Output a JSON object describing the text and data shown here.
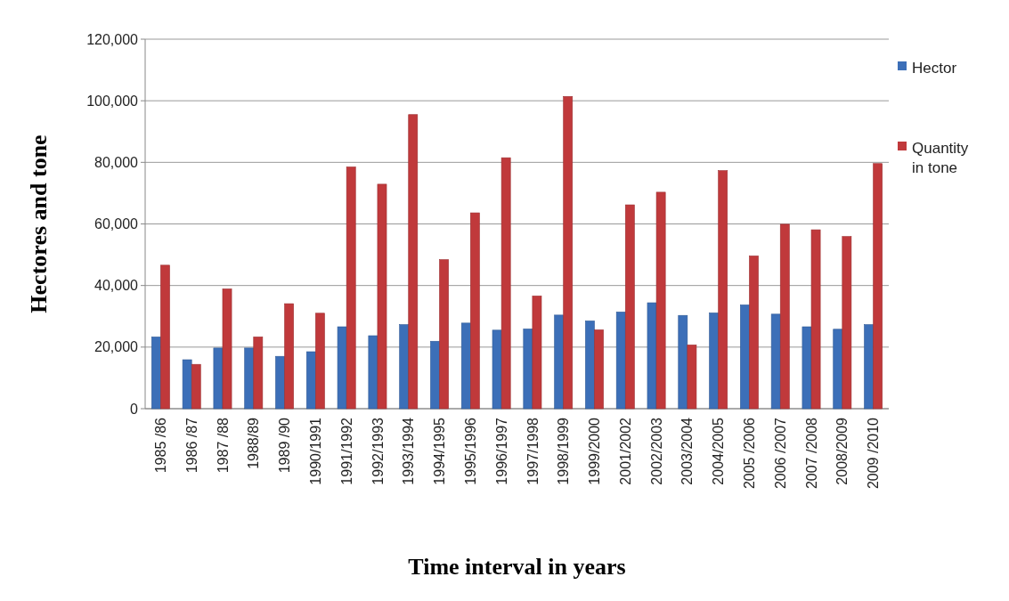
{
  "chart_data": {
    "type": "bar",
    "xlabel": "Time interval in years",
    "ylabel": "Hectores and tone",
    "categories": [
      "1985 /86",
      "1986 /87",
      "1987 /88",
      "1988/89",
      "1989 /90",
      "1990/1991",
      "1991/1992",
      "1992/1993",
      "1993/1994",
      "1994/1995",
      "1995/1996",
      "1996/1997",
      "1997/1998",
      "1998/1999",
      "1999/2000",
      "2001/2002",
      "2002/2003",
      "2003/2004",
      "2004/2005",
      "2005 /2006",
      "2006 /2007",
      "2007 /2008",
      "2008/2009",
      "2009 /2010"
    ],
    "series": [
      {
        "name": "Hector",
        "color": "#3c6fb8",
        "values": [
          23300,
          15900,
          19700,
          19700,
          17000,
          18500,
          26600,
          23700,
          27300,
          21900,
          27800,
          25500,
          25900,
          30400,
          28500,
          31400,
          34400,
          30300,
          31100,
          33700,
          30700,
          26600,
          25800,
          27300
        ]
      },
      {
        "name": "Quantity in tone",
        "color": "#c0393b",
        "values": [
          46600,
          14400,
          38900,
          23300,
          34100,
          31000,
          78500,
          72900,
          95500,
          48400,
          63600,
          81500,
          36600,
          101400,
          25600,
          66200,
          70300,
          20700,
          77300,
          49600,
          59900,
          58100,
          55900,
          79600
        ]
      }
    ],
    "ylim": [
      0,
      120000
    ],
    "yticks": [
      {
        "value": 0,
        "label": "0"
      },
      {
        "value": 20000,
        "label": "20,000"
      },
      {
        "value": 40000,
        "label": "40,000"
      },
      {
        "value": 60000,
        "label": "60,000"
      },
      {
        "value": 80000,
        "label": "80,000"
      },
      {
        "value": 100000,
        "label": "100,000"
      },
      {
        "value": 120000,
        "label": "120,000"
      }
    ],
    "grid": "y",
    "legend": "right"
  }
}
